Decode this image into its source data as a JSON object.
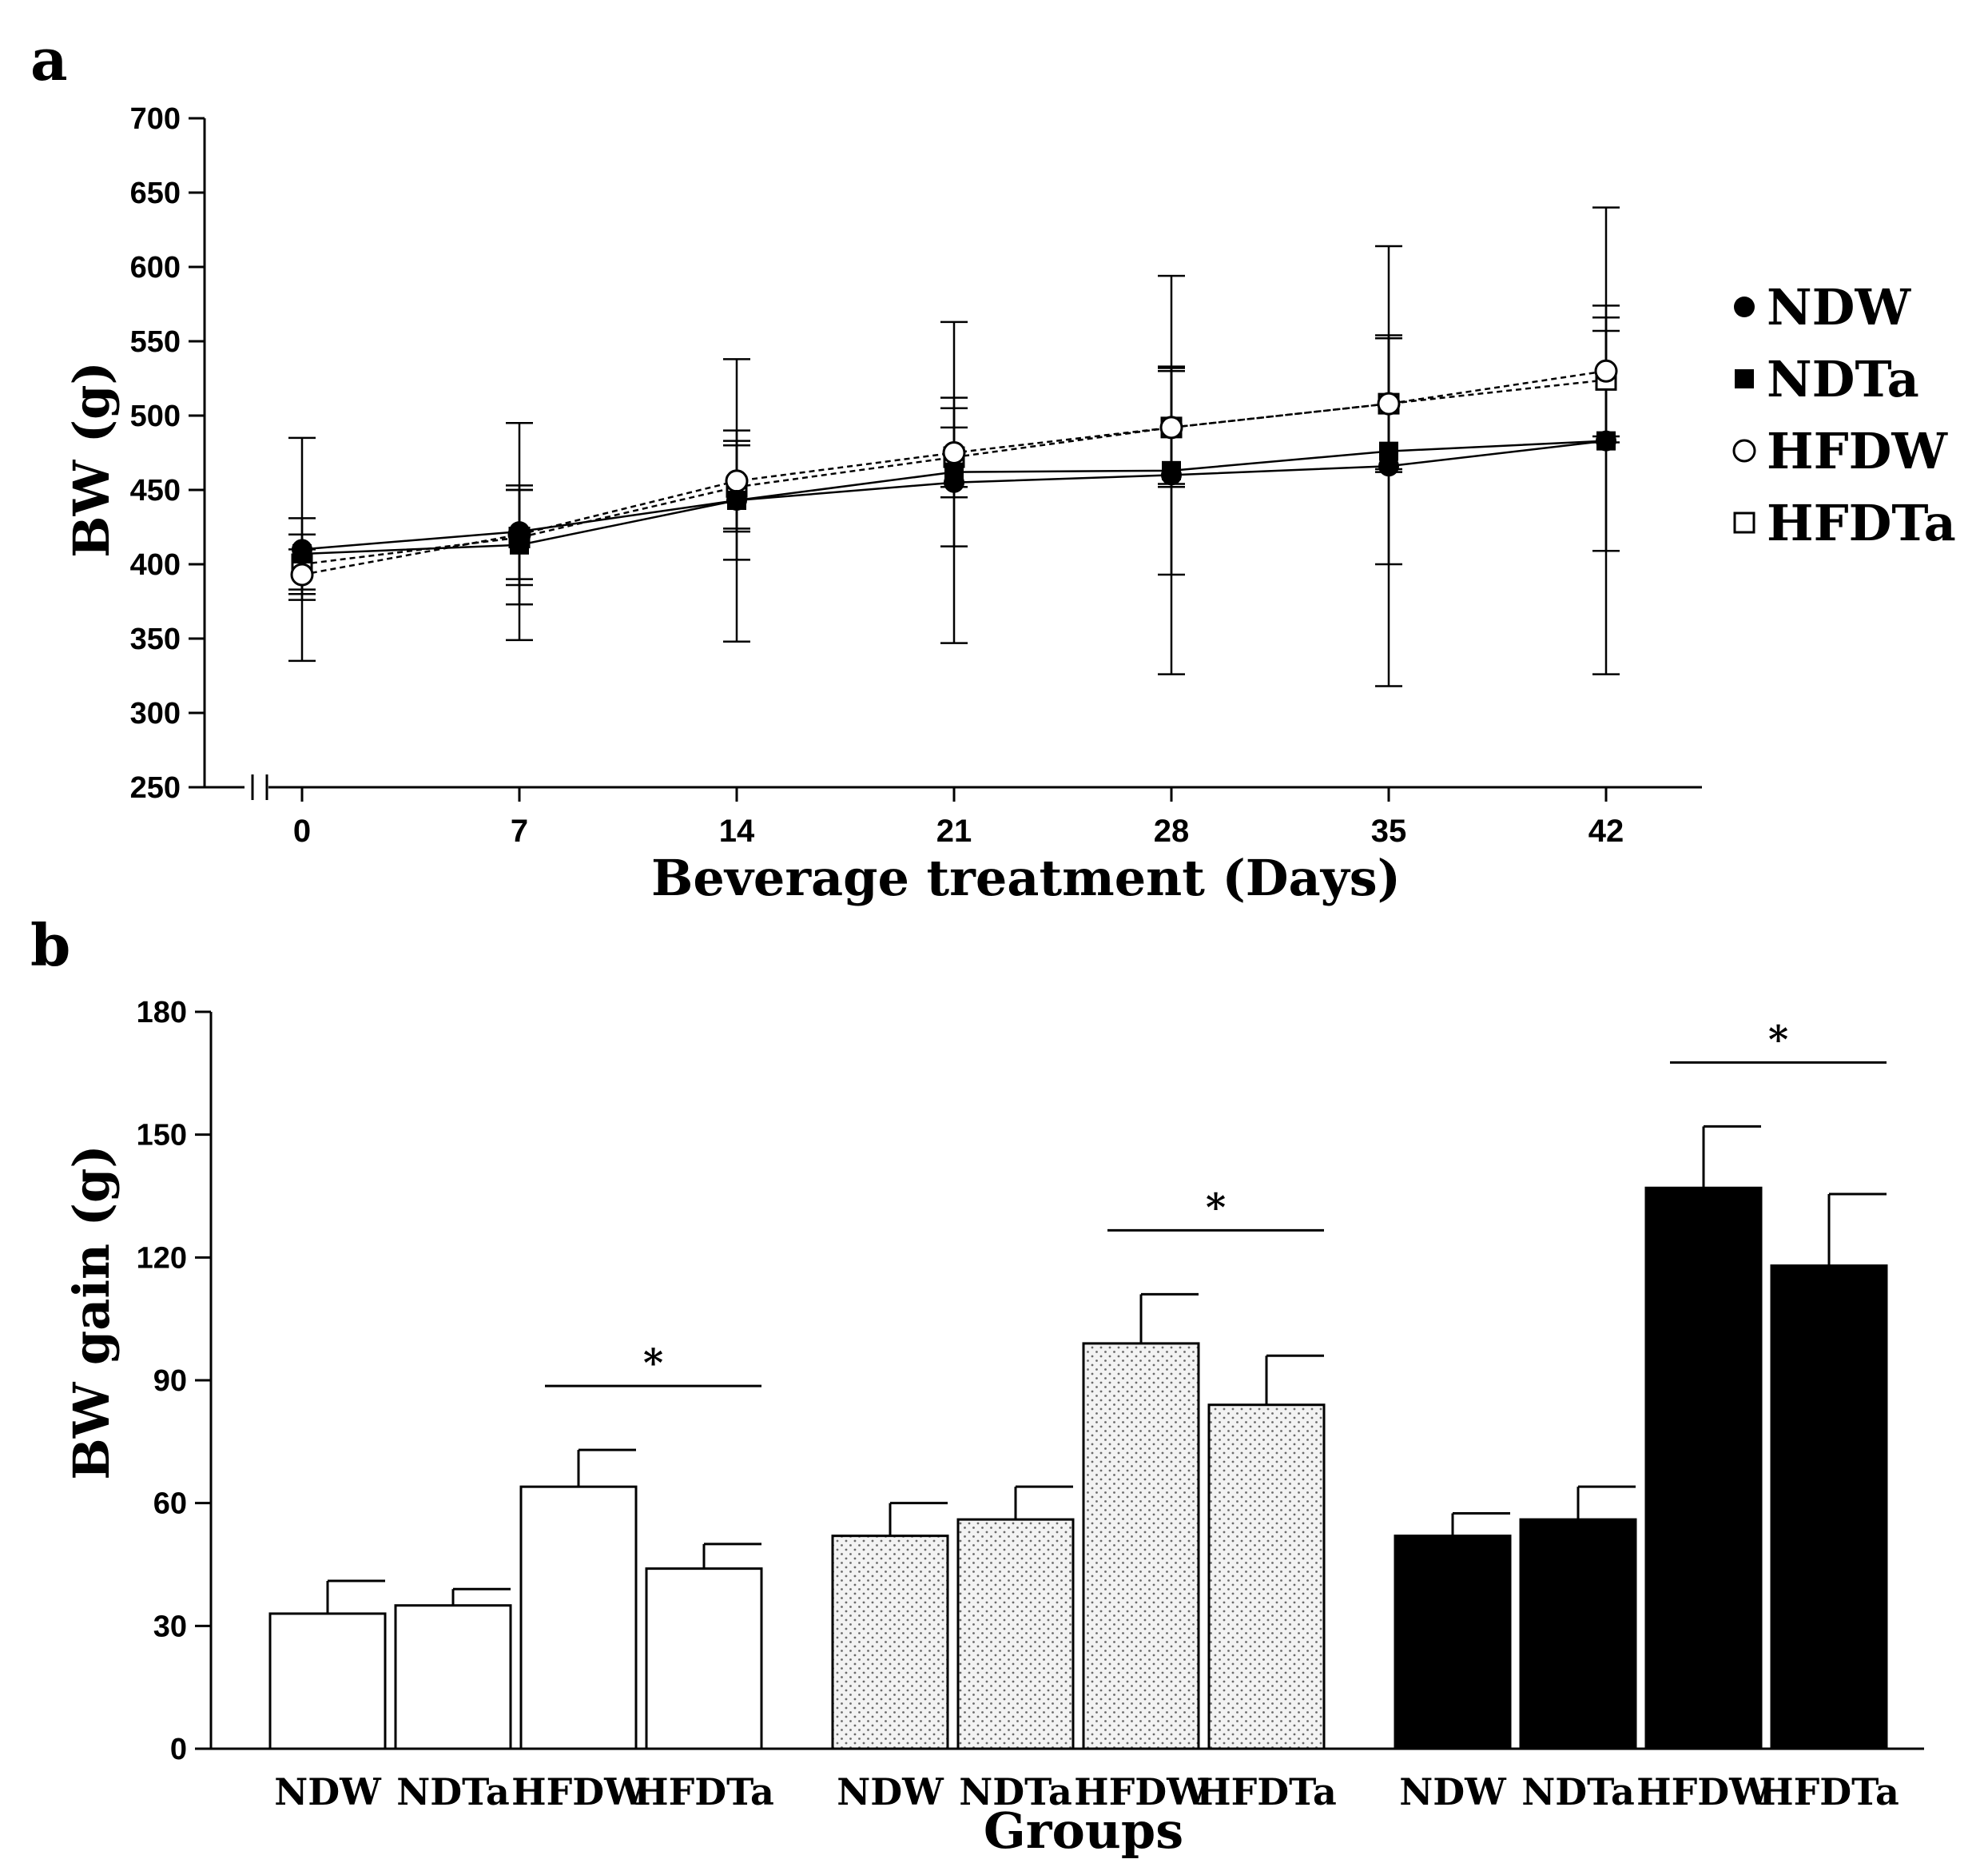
{
  "colors": {
    "ink": "#000000",
    "paper": "#ffffff",
    "dot_fill": "#f2f2f2"
  },
  "chart_data": [
    {
      "type": "line",
      "panel_label": "a",
      "xlabel": "Beverage treatment (Days)",
      "ylabel": "BW (g)",
      "x": [
        0,
        7,
        14,
        21,
        28,
        35,
        42
      ],
      "x_ticks": [
        "0",
        "7",
        "14",
        "21",
        "28",
        "35",
        "42"
      ],
      "y_ticks": [
        "250",
        "300",
        "350",
        "400",
        "450",
        "500",
        "550",
        "600",
        "650",
        "700"
      ],
      "xlim": [
        -2,
        42
      ],
      "ylim": [
        250,
        700
      ],
      "axis_break": "x",
      "legend_position": "right",
      "series": [
        {
          "name": "NDW",
          "marker": "filled-circle",
          "line": "solid",
          "values": [
            410,
            422,
            443,
            455,
            460,
            466,
            483
          ],
          "err": [
            75,
            73,
            95,
            108,
            134,
            148,
            157
          ]
        },
        {
          "name": "NDTa",
          "marker": "filled-square",
          "line": "solid",
          "values": [
            407,
            413,
            443,
            462,
            463,
            476,
            483
          ],
          "err": [
            24,
            40,
            40,
            50,
            70,
            76,
            74
          ]
        },
        {
          "name": "HFDW",
          "marker": "open-circle",
          "line": "dashed",
          "values": [
            393,
            420,
            456,
            475,
            492,
            508,
            530
          ],
          "err": [
            17,
            30,
            34,
            30,
            40,
            44,
            44
          ]
        },
        {
          "name": "HFDTa",
          "marker": "open-square",
          "line": "dashed",
          "values": [
            400,
            418,
            452,
            472,
            492,
            508,
            524
          ],
          "err": [
            20,
            32,
            28,
            20,
            38,
            46,
            42
          ]
        }
      ]
    },
    {
      "type": "bar",
      "panel_label": "b",
      "xlabel": "Groups",
      "ylabel": "BW gain (g)",
      "ylim": [
        0,
        180
      ],
      "y_ticks": [
        "0",
        "30",
        "60",
        "90",
        "120",
        "150",
        "180"
      ],
      "categories": [
        "NDW",
        "NDTa",
        "HFDW",
        "HFDTa"
      ],
      "groups": [
        {
          "fill": "white",
          "values": [
            33,
            35,
            64,
            44
          ],
          "err": [
            8,
            4,
            9,
            6
          ],
          "sig": {
            "from": 2,
            "to": 3,
            "label": "*"
          }
        },
        {
          "fill": "dotted",
          "values": [
            52,
            56,
            99,
            84
          ],
          "err": [
            8,
            8,
            12,
            12
          ],
          "sig": {
            "from": 2,
            "to": 3,
            "label": "*"
          }
        },
        {
          "fill": "black",
          "values": [
            52,
            56,
            137,
            118
          ],
          "err": [
            5.5,
            8,
            15,
            17.5
          ],
          "sig": {
            "from": 2,
            "to": 3,
            "label": "*"
          }
        }
      ]
    }
  ]
}
